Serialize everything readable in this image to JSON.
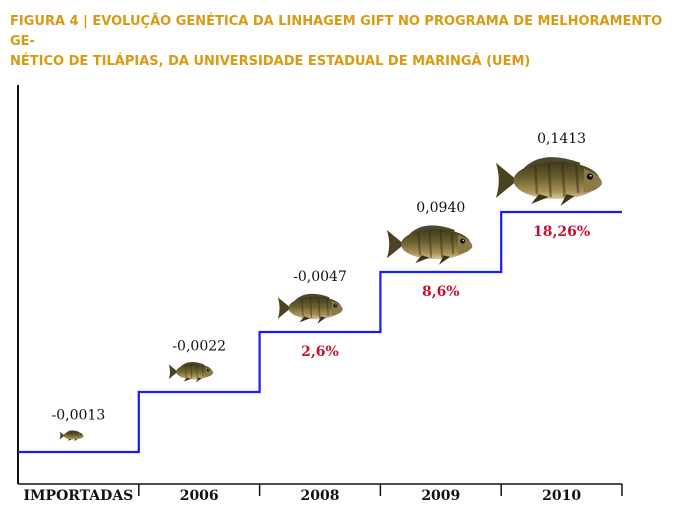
{
  "figure": {
    "title_line1": "FIGURA 4 | EVOLUÇÃO GENÉTICA DA LINHAGEM GIFT NO PROGRAMA DE MELHORAMENTO GE-",
    "title_line2": "NÉTICO DE TILÁPIAS, DA UNIVERSIDADE ESTADUAL DE MARINGÁ (UEM)"
  },
  "colors": {
    "title": "#d99a12",
    "step_line": "#1a1aff",
    "gain_text": "#c8102e",
    "axis": "#111111"
  },
  "chart_data": {
    "type": "line",
    "style": "step",
    "categories": [
      "IMPORTADAS",
      "2006",
      "2008",
      "2009",
      "2010"
    ],
    "values": [
      -0.0013,
      -0.0022,
      -0.0047,
      0.094,
      0.1413
    ],
    "value_labels": [
      "-0,0013",
      "-0,0022",
      "-0,0047",
      "0,0940",
      "0,1413"
    ],
    "gain_labels": [
      "",
      "",
      "2,6%",
      "8,6%",
      "18,26%"
    ],
    "fish_sizes": [
      1,
      2,
      3,
      4,
      5
    ],
    "fish_icon": "tilapia-fish-icon",
    "grid": false,
    "legend": "none"
  }
}
